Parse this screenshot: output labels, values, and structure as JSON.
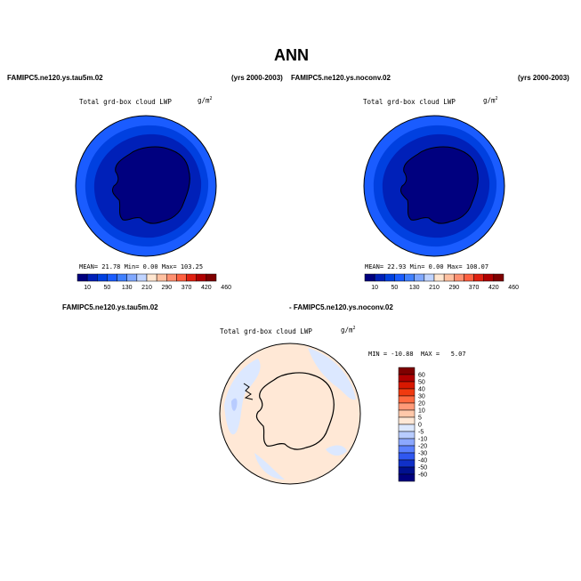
{
  "page_title": "ANN",
  "panels": [
    {
      "case_left": "FAMIPC5.ne120.ys.tau5m.02",
      "case_right": "(yrs 2000-2003)",
      "plot_title": "Total grd-box cloud LWP",
      "units": "g/m",
      "units_sup": "2",
      "stats": {
        "mean_label": "MEAN=",
        "mean": "21.78",
        "min_label": "Min=",
        "min": "0.00",
        "max_label": "Max=",
        "max": "103.25"
      },
      "colorbar_ticks": [
        "10",
        "50",
        "130",
        "210",
        "290",
        "370",
        "420",
        "460"
      ]
    },
    {
      "case_left": "FAMIPC5.ne120.ys.noconv.02",
      "case_right": "(yrs 2000-2003)",
      "plot_title": "Total grd-box cloud LWP",
      "units": "g/m",
      "units_sup": "2",
      "stats": {
        "mean_label": "MEAN=",
        "mean": "22.93",
        "min_label": "Min=",
        "min": "0.00",
        "max_label": "Max=",
        "max": "108.07"
      },
      "colorbar_ticks": [
        "10",
        "50",
        "130",
        "210",
        "290",
        "370",
        "420",
        "460"
      ]
    }
  ],
  "diff_panel": {
    "case_left": "FAMIPC5.ne120.ys.tau5m.02",
    "case_right": "- FAMIPC5.ne120.ys.noconv.02",
    "plot_title": "Total grd-box cloud LWP",
    "units": "g/m",
    "units_sup": "2",
    "minmax": "MIN = -10.88  MAX =   5.07",
    "colorbar_ticks": [
      "60",
      "50",
      "40",
      "30",
      "20",
      "10",
      "5",
      "0",
      "-5",
      "-10",
      "-20",
      "-30",
      "-40",
      "-50",
      "-60"
    ]
  },
  "colors": {
    "abs_scale": [
      "#00007f",
      "#0020b8",
      "#0040e0",
      "#1a5cff",
      "#4080ff",
      "#80a8ff",
      "#c0d4ff",
      "#ffe6d0",
      "#ffc0a0",
      "#ff9070",
      "#ff6040",
      "#e02010",
      "#b00000",
      "#7f0000"
    ],
    "diff_scale": [
      "#7f0000",
      "#b00000",
      "#d81800",
      "#f03a10",
      "#ff6a40",
      "#ff9a78",
      "#ffc8aa",
      "#ffe8d6",
      "#dce8ff",
      "#b8ccff",
      "#8ca8ff",
      "#5a80ff",
      "#3058f0",
      "#1030c8",
      "#00108f",
      "#00007f"
    ],
    "ocean_far": "#1a5cff",
    "ocean_mid": "#0040e0",
    "ocean_near": "#0020b8",
    "antarctica": "#00007f",
    "diff_bg": "#ffe8d6",
    "diff_blue": "#dce8ff",
    "diff_blue2": "#b8ccff"
  }
}
